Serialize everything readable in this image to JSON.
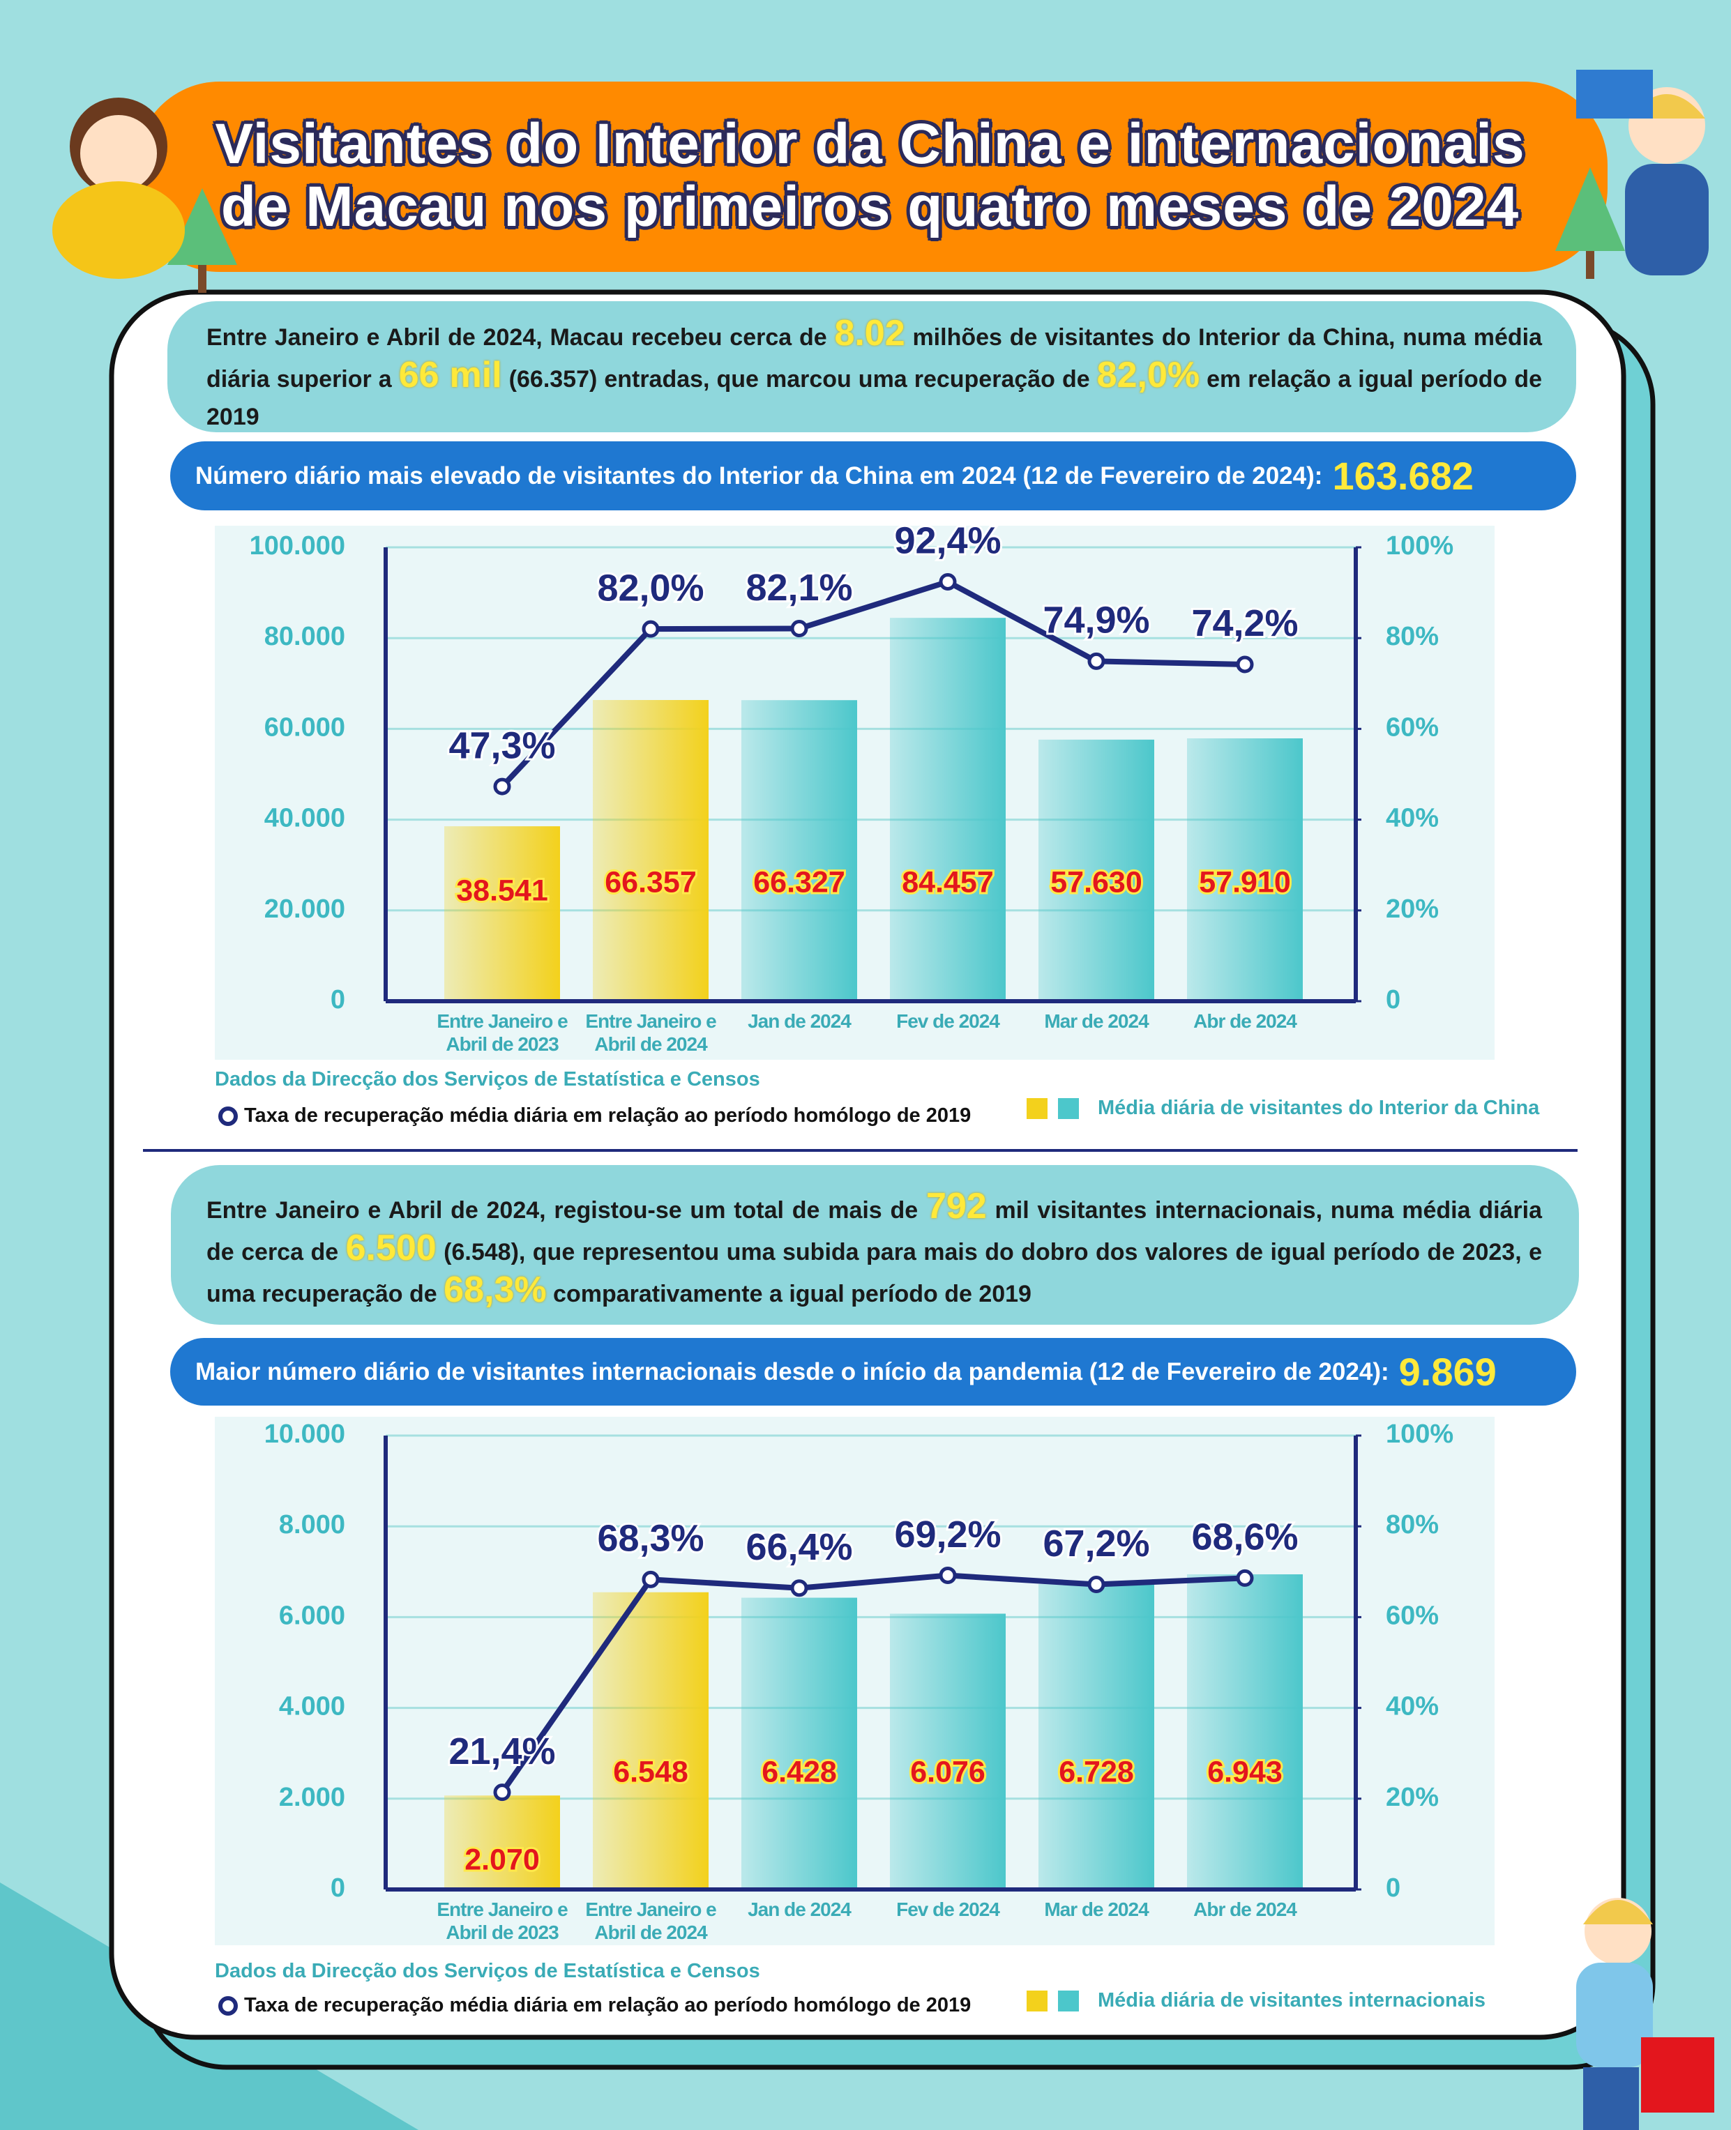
{
  "header": {
    "title": [
      "Visitantes do Interior da China e internacionais",
      "de Macau nos primeiros quatro meses de 2024"
    ]
  },
  "chart_data": [
    {
      "type": "bar",
      "summary": [
        "Entre Janeiro e Abril de 2024, Macau recebeu cerca de ",
        "8.02",
        " milhões de visitantes do Interior da China, numa média diária superior a ",
        "66 mil",
        " (66.357) entradas, que marcou uma recuperação de ",
        "82,0%",
        " em relação a igual período de 2019"
      ],
      "record_label": "Número diário mais elevado de visitantes do Interior da China em 2024 (12 de Fevereiro de 2024):",
      "record_value": "163.682",
      "categories": [
        "Entre Janeiro e Abril de 2023",
        "Entre Janeiro e Abril de 2024",
        "Jan de 2024",
        "Fev de 2024",
        "Mar de 2024",
        "Abr de 2024"
      ],
      "series": [
        {
          "name": "Média diária de visitantes do Interior da China",
          "type": "bar",
          "colors": [
            "#f3d11c",
            "#f3d11c",
            "#4cc7cb",
            "#4cc7cb",
            "#4cc7cb",
            "#4cc7cb"
          ],
          "values": [
            38541,
            66357,
            66327,
            84457,
            57630,
            57910
          ],
          "value_labels": [
            "38.541",
            "66.357",
            "66.327",
            "84.457",
            "57.630",
            "57.910"
          ]
        },
        {
          "name": "Taxa de recuperação média diária em relação ao período homólogo de 2019",
          "type": "line",
          "axis": "y2",
          "color": "#1f2a7c",
          "values": [
            47.3,
            82.0,
            82.1,
            92.4,
            74.9,
            74.2
          ],
          "value_labels": [
            "47,3%",
            "82,0%",
            "82,1%",
            "92,4%",
            "74,9%",
            "74,2%"
          ]
        }
      ],
      "ylim": [
        0,
        100000
      ],
      "yticks": [
        0,
        {
          "value": 20000,
          "label": "20.000"
        },
        {
          "value": 40000,
          "label": "40.000"
        },
        {
          "value": 60000,
          "label": "60.000"
        },
        {
          "value": 80000,
          "label": "80.000"
        },
        {
          "value": 100000,
          "label": "100.000"
        }
      ],
      "y2lim": [
        0,
        100
      ],
      "y2ticks": [
        0,
        {
          "value": 20,
          "label": "20%"
        },
        {
          "value": 40,
          "label": "40%"
        },
        {
          "value": 60,
          "label": "60%"
        },
        {
          "value": 80,
          "label": "80%"
        },
        {
          "value": 100,
          "label": "100%"
        }
      ],
      "grid": true,
      "source": "Dados da Direcção dos Serviços de Estatística e Censos"
    },
    {
      "type": "bar",
      "summary": [
        "Entre Janeiro e Abril de 2024, registou-se um total de mais de ",
        "792",
        " mil visitantes internacionais, numa média diária de cerca de ",
        "6.500",
        " (6.548), que representou uma subida para mais do dobro dos valores de igual período de 2023, e uma recuperação de ",
        "68,3%",
        " comparativamente a igual período de 2019"
      ],
      "record_label": "Maior número diário de visitantes internacionais desde o início da pandemia (12 de Fevereiro de 2024):",
      "record_value": "9.869",
      "categories": [
        "Entre Janeiro e Abril de 2023",
        "Entre Janeiro e Abril de 2024",
        "Jan de 2024",
        "Fev de 2024",
        "Mar de 2024",
        "Abr de 2024"
      ],
      "series": [
        {
          "name": "Média diária de visitantes internacionais",
          "type": "bar",
          "colors": [
            "#f3d11c",
            "#f3d11c",
            "#4cc7cb",
            "#4cc7cb",
            "#4cc7cb",
            "#4cc7cb"
          ],
          "values": [
            2070,
            6548,
            6428,
            6076,
            6728,
            6943
          ],
          "value_labels": [
            "2.070",
            "6.548",
            "6.428",
            "6.076",
            "6.728",
            "6.943"
          ]
        },
        {
          "name": "Taxa de recuperação média diária em relação ao período homólogo de 2019",
          "type": "line",
          "axis": "y2",
          "color": "#1f2a7c",
          "values": [
            21.4,
            68.3,
            66.4,
            69.2,
            67.2,
            68.6
          ],
          "value_labels": [
            "21,4%",
            "68,3%",
            "66,4%",
            "69,2%",
            "67,2%",
            "68,6%"
          ]
        }
      ],
      "ylim": [
        0,
        10000
      ],
      "yticks": [
        0,
        {
          "value": 2000,
          "label": "2.000"
        },
        {
          "value": 4000,
          "label": "4.000"
        },
        {
          "value": 6000,
          "label": "6.000"
        },
        {
          "value": 8000,
          "label": "8.000"
        },
        {
          "value": 10000,
          "label": "10.000"
        }
      ],
      "y2lim": [
        0,
        100
      ],
      "y2ticks": [
        0,
        {
          "value": 20,
          "label": "20%"
        },
        {
          "value": 40,
          "label": "40%"
        },
        {
          "value": 60,
          "label": "60%"
        },
        {
          "value": 80,
          "label": "80%"
        },
        {
          "value": 100,
          "label": "100%"
        }
      ],
      "grid": true,
      "source": "Dados da Direcção dos Serviços de Estatística e Censos"
    }
  ]
}
